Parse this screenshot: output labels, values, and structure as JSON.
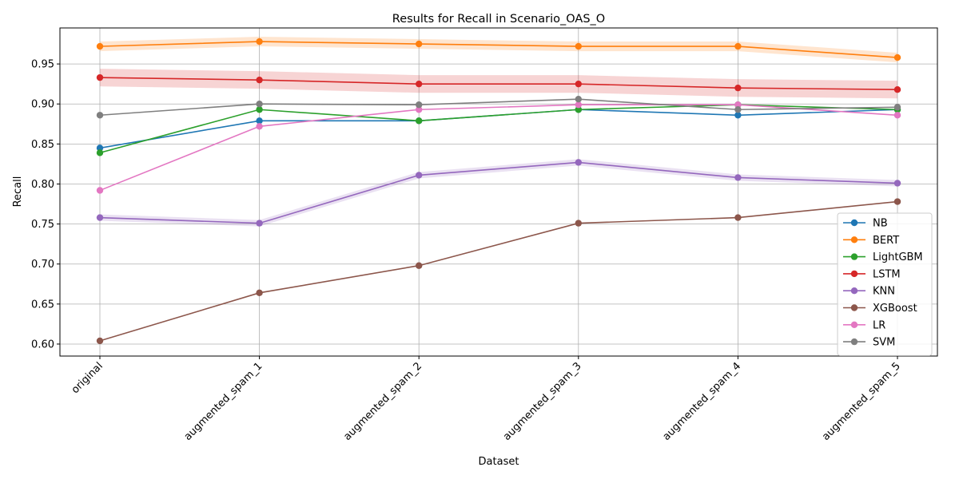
{
  "chart_data": {
    "type": "line",
    "title": "Results for Recall in Scenario_OAS_O",
    "xlabel": "Dataset",
    "ylabel": "Recall",
    "categories": [
      "original",
      "augmented_spam_1",
      "augmented_spam_2",
      "augmented_spam_3",
      "augmented_spam_4",
      "augmented_spam_5"
    ],
    "ylim": [
      0.585,
      0.995
    ],
    "yticks": [
      "0.60",
      "0.65",
      "0.70",
      "0.75",
      "0.80",
      "0.85",
      "0.90",
      "0.95"
    ],
    "grid": true,
    "legend_position": "lower right",
    "series": [
      {
        "name": "NB",
        "color": "#1f77b4",
        "values": [
          0.845,
          0.879,
          0.879,
          0.893,
          0.886,
          0.893
        ],
        "band": 0
      },
      {
        "name": "BERT",
        "color": "#ff7f0e",
        "values": [
          0.972,
          0.978,
          0.975,
          0.972,
          0.972,
          0.958
        ],
        "band": 0.006
      },
      {
        "name": "LightGBM",
        "color": "#2ca02c",
        "values": [
          0.839,
          0.893,
          0.879,
          0.893,
          0.899,
          0.893
        ],
        "band": 0
      },
      {
        "name": "LSTM",
        "color": "#d62728",
        "values": [
          0.933,
          0.93,
          0.925,
          0.925,
          0.92,
          0.918
        ],
        "band": 0.011
      },
      {
        "name": "KNN",
        "color": "#9467bd",
        "values": [
          0.758,
          0.751,
          0.811,
          0.827,
          0.808,
          0.801
        ],
        "band": 0.004
      },
      {
        "name": "XGBoost",
        "color": "#8c564b",
        "values": [
          0.604,
          0.664,
          0.698,
          0.751,
          0.758,
          0.778
        ],
        "band": 0
      },
      {
        "name": "LR",
        "color": "#e377c2",
        "values": [
          0.792,
          0.872,
          0.893,
          0.899,
          0.899,
          0.886
        ],
        "band": 0
      },
      {
        "name": "SVM",
        "color": "#7f7f7f",
        "values": [
          0.886,
          0.9,
          0.899,
          0.906,
          0.893,
          0.896
        ],
        "band": 0
      }
    ]
  }
}
